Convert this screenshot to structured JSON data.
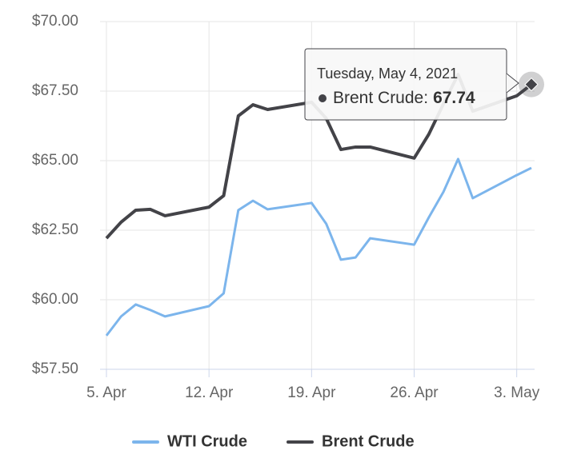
{
  "chart_data": {
    "type": "line",
    "x": [
      "2021-04-05",
      "2021-04-06",
      "2021-04-07",
      "2021-04-08",
      "2021-04-09",
      "2021-04-12",
      "2021-04-13",
      "2021-04-14",
      "2021-04-15",
      "2021-04-16",
      "2021-04-19",
      "2021-04-20",
      "2021-04-21",
      "2021-04-22",
      "2021-04-23",
      "2021-04-26",
      "2021-04-27",
      "2021-04-28",
      "2021-04-29",
      "2021-04-30",
      "2021-05-03",
      "2021-05-04"
    ],
    "series": [
      {
        "name": "WTI Crude",
        "color": "#7cb5ec",
        "values": [
          58.71,
          59.4,
          59.83,
          59.63,
          59.4,
          59.77,
          60.23,
          63.22,
          63.56,
          63.25,
          63.48,
          62.73,
          61.44,
          61.52,
          62.21,
          61.98,
          62.96,
          63.88,
          65.06,
          63.65,
          64.48,
          64.74
        ]
      },
      {
        "name": "Brent Crude",
        "color": "#434348",
        "values": [
          62.21,
          62.79,
          63.22,
          63.25,
          63.02,
          63.33,
          63.74,
          66.61,
          67.01,
          66.84,
          67.1,
          66.52,
          65.4,
          65.49,
          65.49,
          65.09,
          65.95,
          67.04,
          68.1,
          66.78,
          67.33,
          67.74
        ]
      }
    ],
    "xlim": [
      "2021-04-05",
      "2021-05-04"
    ],
    "xticks": [
      {
        "value": "2021-04-05",
        "label": "5. Apr"
      },
      {
        "value": "2021-04-12",
        "label": "12. Apr"
      },
      {
        "value": "2021-04-19",
        "label": "19. Apr"
      },
      {
        "value": "2021-04-26",
        "label": "26. Apr"
      },
      {
        "value": "2021-05-03",
        "label": "3. May"
      }
    ],
    "ylim": [
      57.5,
      70
    ],
    "yticks": [
      {
        "value": 57.5,
        "label": "$57.50"
      },
      {
        "value": 60,
        "label": "$60.00"
      },
      {
        "value": 62.5,
        "label": "$62.50"
      },
      {
        "value": 65,
        "label": "$65.00"
      },
      {
        "value": 67.5,
        "label": "$67.50"
      },
      {
        "value": 70,
        "label": "$70.00"
      }
    ],
    "grid": true,
    "legend": "bottom",
    "tooltip": {
      "header": "Tuesday, May 4, 2021",
      "label": "Brent Crude:"
    }
  }
}
